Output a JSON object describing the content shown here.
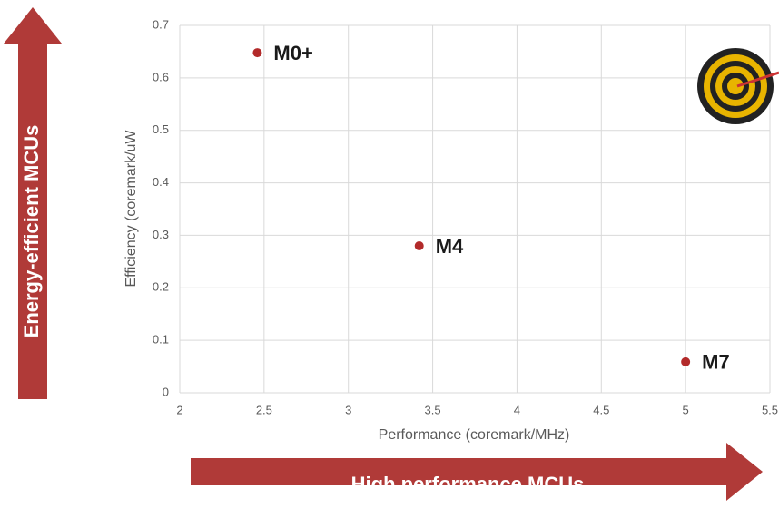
{
  "chart_data": {
    "type": "scatter",
    "x_label": "Performance (coremark/MHz)",
    "y_label": "Efficiency (coremark/uW",
    "series": [
      {
        "color": "#b22a2a",
        "x": [
          2.46,
          3.42,
          5.0
        ],
        "values": [
          0.648,
          0.28,
          0.059
        ],
        "point_labels": [
          "M0+",
          "M4",
          "M7"
        ]
      }
    ],
    "xlim": [
      2,
      5.5
    ],
    "xticks": [
      2,
      2.5,
      3,
      3.5,
      4,
      4.5,
      5,
      5.5
    ],
    "ylim": [
      0,
      0.7
    ],
    "yticks": [
      0,
      0.1,
      0.2,
      0.3,
      0.4,
      0.5,
      0.6,
      0.7
    ],
    "grid": true,
    "annotations": [
      "Energy-efficient MCUs",
      "High performance MCUs"
    ]
  }
}
